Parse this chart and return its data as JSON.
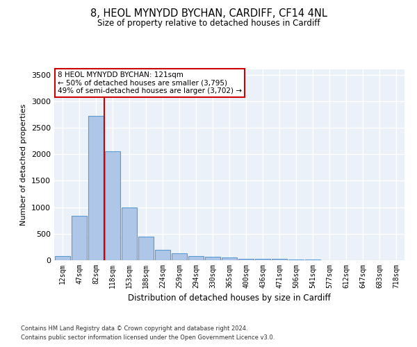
{
  "title": "8, HEOL MYNYDD BYCHAN, CARDIFF, CF14 4NL",
  "subtitle": "Size of property relative to detached houses in Cardiff",
  "xlabel": "Distribution of detached houses by size in Cardiff",
  "ylabel": "Number of detached properties",
  "bin_labels": [
    "12sqm",
    "47sqm",
    "82sqm",
    "118sqm",
    "153sqm",
    "188sqm",
    "224sqm",
    "259sqm",
    "294sqm",
    "330sqm",
    "365sqm",
    "400sqm",
    "436sqm",
    "471sqm",
    "506sqm",
    "541sqm",
    "577sqm",
    "612sqm",
    "647sqm",
    "683sqm",
    "718sqm"
  ],
  "bar_values": [
    75,
    840,
    2720,
    2060,
    1000,
    450,
    200,
    135,
    80,
    65,
    50,
    30,
    25,
    20,
    15,
    8,
    5,
    3,
    2,
    1,
    1
  ],
  "bar_color": "#aec6e8",
  "bar_edge_color": "#5b9bd5",
  "vline_x_index": 3,
  "vline_color": "#cc0000",
  "annotation_text": "8 HEOL MYNYDD BYCHAN: 121sqm\n← 50% of detached houses are smaller (3,795)\n49% of semi-detached houses are larger (3,702) →",
  "annotation_box_color": "#ffffff",
  "annotation_box_edge_color": "#cc0000",
  "ylim": [
    0,
    3600
  ],
  "yticks": [
    0,
    500,
    1000,
    1500,
    2000,
    2500,
    3000,
    3500
  ],
  "bg_color": "#eaf1f8",
  "grid_color": "#ffffff",
  "footer_line1": "Contains HM Land Registry data © Crown copyright and database right 2024.",
  "footer_line2": "Contains public sector information licensed under the Open Government Licence v3.0."
}
